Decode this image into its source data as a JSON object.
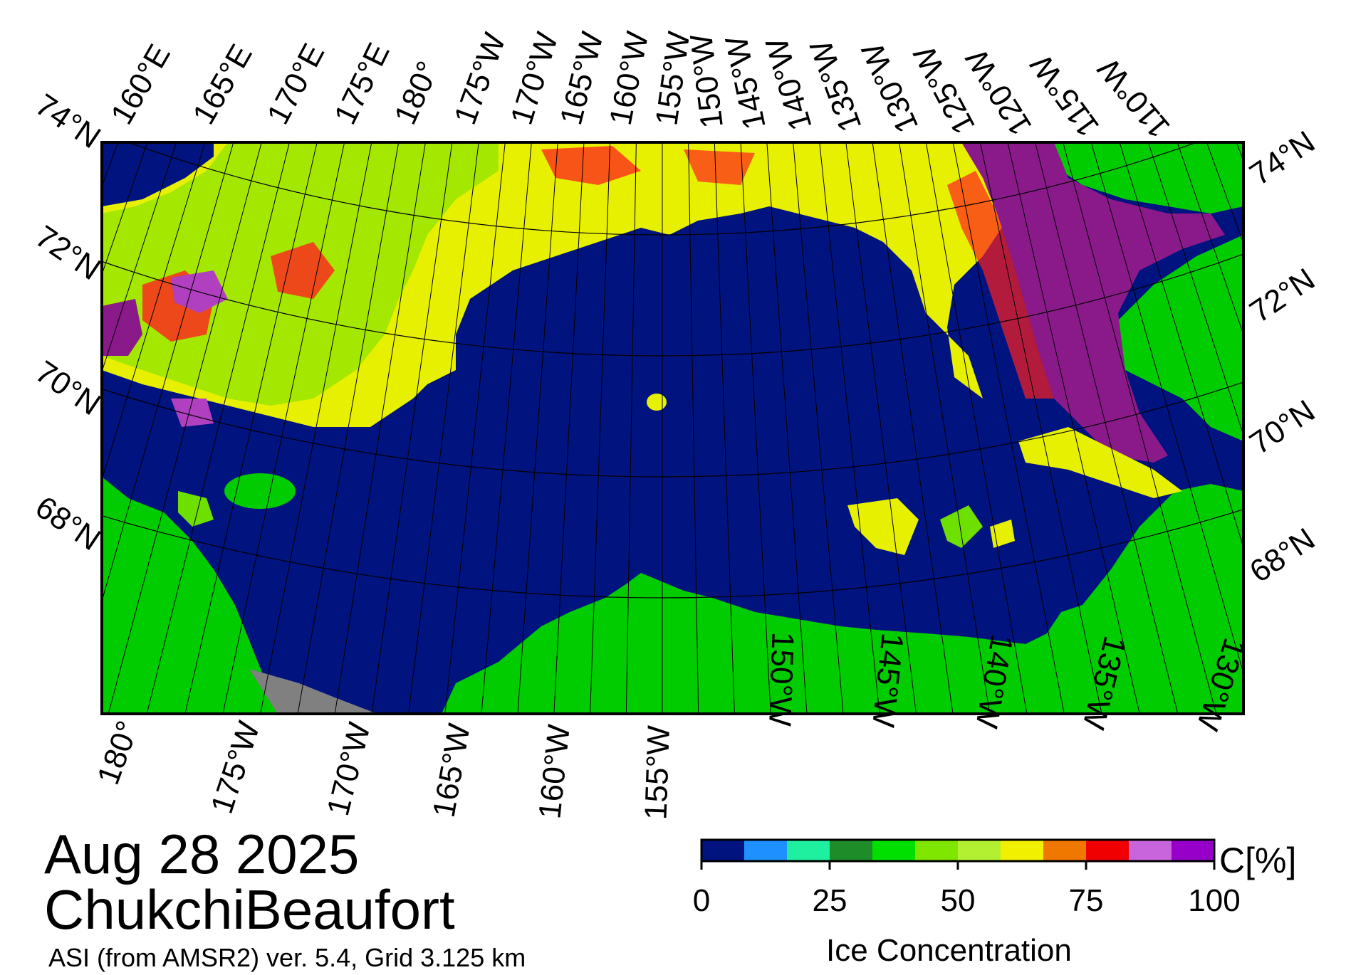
{
  "date_label": "Aug 28 2025",
  "region_label": "ChukchiBeaufort",
  "product_label": "ASI (from AMSR2) ver. 5.4,  Grid 3.125 km",
  "colorbar": {
    "title": "Ice Concentration",
    "unit": "C[%]",
    "ticks": [
      "0",
      "25",
      "50",
      "75",
      "100"
    ],
    "colors": [
      "#00137f",
      "#1e90ff",
      "#1ef0a0",
      "#1e8c28",
      "#00e000",
      "#7ee600",
      "#b4f032",
      "#f0f000",
      "#f07800",
      "#f00000",
      "#c864dc",
      "#9600c8"
    ]
  },
  "colors": {
    "open_water": "#00137f",
    "land": "#00cc00",
    "land_mask_gray": "#808080",
    "ice_green": "#6ee000",
    "ice_yellow": "#e6f000",
    "ice_red": "#ff2020",
    "ice_purple": "#8a1a8a",
    "ice_magenta": "#b040c0"
  },
  "axes": {
    "top_longitudes": [
      "160°E",
      "165°E",
      "170°E",
      "175°E",
      "180°",
      "175°W",
      "170°W",
      "165°W",
      "160°W",
      "155°W",
      "150°W",
      "145°W",
      "140°W",
      "135°W",
      "130°W",
      "125°W",
      "120°W",
      "115°W",
      "110°W"
    ],
    "bottom_longitudes": [
      "180°",
      "175°W",
      "170°W",
      "165°W",
      "160°W",
      "155°W",
      "150°W",
      "145°W",
      "140°W",
      "135°W",
      "130°W"
    ],
    "left_latitudes": [
      "74°N",
      "72°N",
      "70°N",
      "68°N"
    ],
    "right_latitudes": [
      "74°N",
      "72°N",
      "70°N",
      "68°N"
    ]
  }
}
